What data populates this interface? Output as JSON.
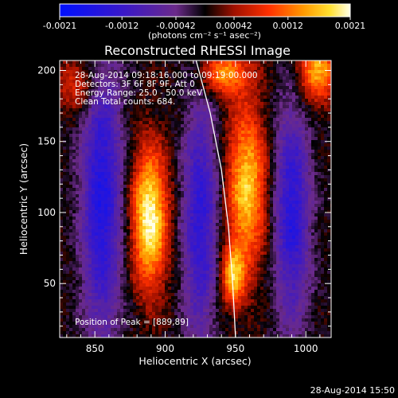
{
  "chart_data": {
    "type": "heatmap",
    "title": "Reconstructed RHESSI Image",
    "xlabel": "Heliocentric X (arcsec)",
    "ylabel": "Heliocentric Y (arcsec)",
    "xlim": [
      825,
      1018
    ],
    "ylim": [
      12,
      207
    ],
    "xticks": [
      850,
      900,
      950,
      1000
    ],
    "yticks": [
      50,
      100,
      150,
      200
    ],
    "colorbar": {
      "range": [
        -0.0021,
        0.0021
      ],
      "tick_values": [
        -0.0021,
        -0.0012,
        -0.00042,
        0.00042,
        0.0012,
        0.0021
      ],
      "tick_labels": [
        "-0.0021",
        "-0.0012",
        "-0.00042",
        "0.00042",
        "0.0012",
        "0.0021"
      ],
      "units": "(photons cm⁻² s⁻¹ asec⁻²)"
    },
    "annotations": [
      "28-Aug-2014 09:18:16.000 to 09:19:00.000",
      "Detectors: 3F 6F 8F 9F, Att 0",
      "Energy Range: 25.0 - 50.0 keV",
      "Clean     Total counts: 684."
    ],
    "peak_label": "Position of Peak = [889,89]",
    "peak": [
      889,
      89
    ],
    "sources": [
      {
        "x": 889,
        "y": 96,
        "sx": 9,
        "sy": 34,
        "amp": 1.0
      },
      {
        "x": 958,
        "y": 118,
        "sx": 10,
        "sy": 40,
        "amp": 0.82
      },
      {
        "x": 948,
        "y": 55,
        "sx": 6,
        "sy": 15,
        "amp": 0.7
      },
      {
        "x": 1008,
        "y": 200,
        "sx": 10,
        "sy": 16,
        "amp": 0.72
      },
      {
        "x": 942,
        "y": 198,
        "sx": 12,
        "sy": 11,
        "amp": 0.65
      },
      {
        "x": 838,
        "y": 190,
        "sx": 11,
        "sy": 13,
        "amp": 0.4
      }
    ],
    "negatives": [
      {
        "x": 855,
        "y": 110,
        "sx": 10,
        "sy": 70,
        "amp": 0.75
      },
      {
        "x": 925,
        "y": 95,
        "sx": 9,
        "sy": 60,
        "amp": 0.65
      },
      {
        "x": 990,
        "y": 100,
        "sx": 9,
        "sy": 55,
        "amp": 0.7
      }
    ],
    "limb_curve": [
      [
        922,
        207
      ],
      [
        932,
        170
      ],
      [
        940,
        130
      ],
      [
        945,
        90
      ],
      [
        948,
        50
      ],
      [
        950,
        12
      ]
    ]
  },
  "footer": {
    "timestamp": "28-Aug-2014 15:50"
  }
}
